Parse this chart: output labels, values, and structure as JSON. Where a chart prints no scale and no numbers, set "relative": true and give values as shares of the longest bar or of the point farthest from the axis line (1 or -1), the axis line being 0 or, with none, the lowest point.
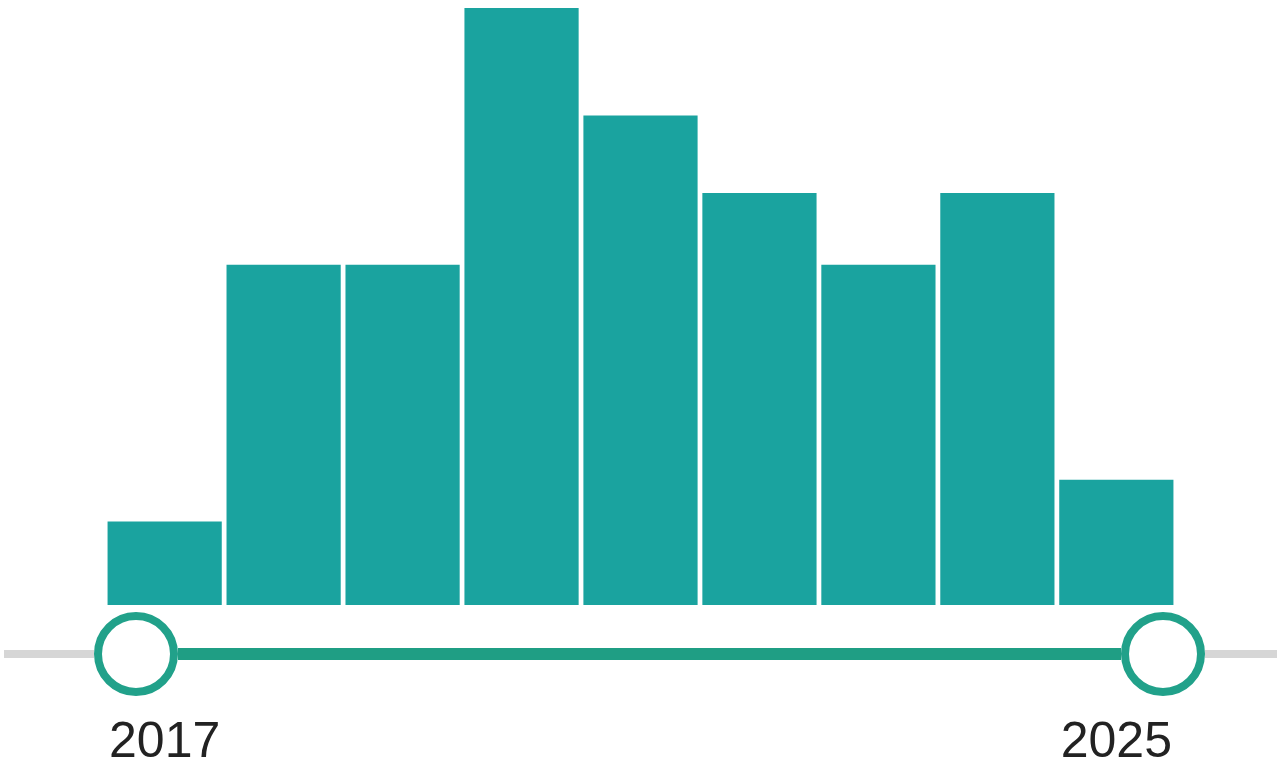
{
  "chart_data": {
    "type": "bar",
    "categories": [
      "2017",
      null,
      null,
      null,
      null,
      null,
      null,
      null,
      "2025"
    ],
    "values": [
      0.14,
      0.57,
      0.57,
      1,
      0.82,
      0.69,
      0.57,
      0.69,
      0.21
    ],
    "color": "#1aa39f",
    "relative": true,
    "grid": false,
    "legend": false
  }
}
